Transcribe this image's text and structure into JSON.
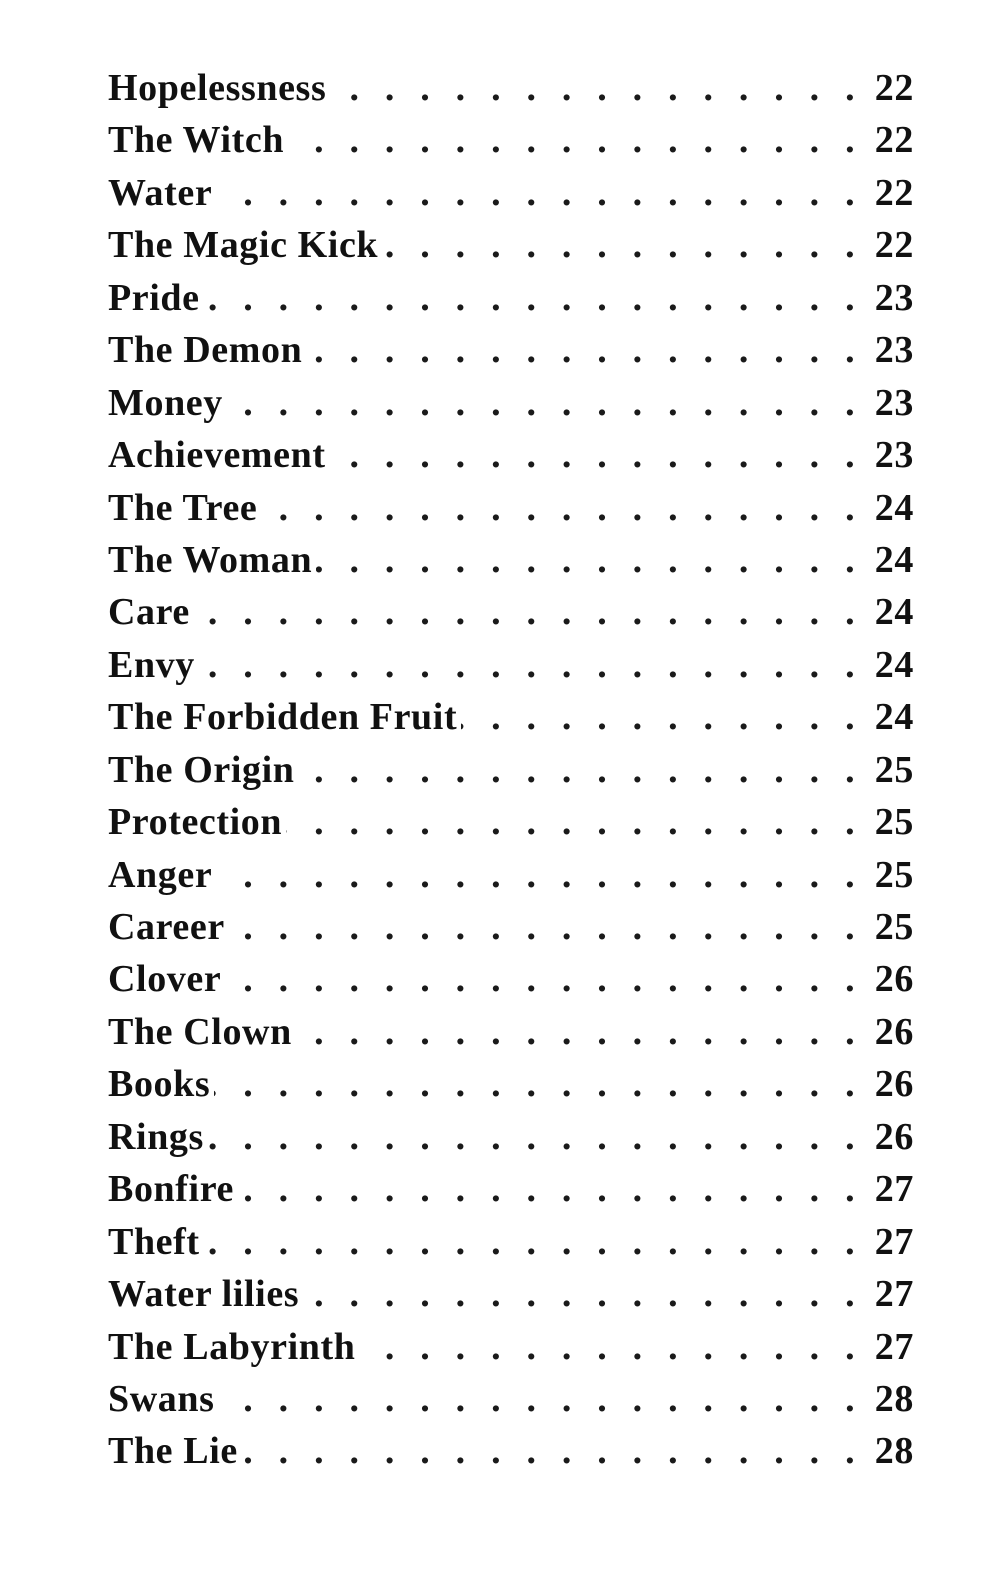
{
  "toc": {
    "entries": [
      {
        "title": "Hopelessness",
        "page": "22"
      },
      {
        "title": "The Witch",
        "page": "22"
      },
      {
        "title": "Water",
        "page": "22"
      },
      {
        "title": "The Magic Kick",
        "page": "22"
      },
      {
        "title": "Pride",
        "page": "23"
      },
      {
        "title": "The Demon",
        "page": "23"
      },
      {
        "title": "Money",
        "page": "23"
      },
      {
        "title": "Achievement",
        "page": "23"
      },
      {
        "title": "The Tree",
        "page": "24"
      },
      {
        "title": "The Woman",
        "page": "24"
      },
      {
        "title": "Care",
        "page": "24"
      },
      {
        "title": "Envy",
        "page": "24"
      },
      {
        "title": "The Forbidden Fruit",
        "page": "24"
      },
      {
        "title": "The Origin",
        "page": "25"
      },
      {
        "title": "Protection",
        "page": "25"
      },
      {
        "title": "Anger",
        "page": "25"
      },
      {
        "title": "Career",
        "page": "25"
      },
      {
        "title": "Clover",
        "page": "26"
      },
      {
        "title": "The Clown",
        "page": "26"
      },
      {
        "title": "Books",
        "page": "26"
      },
      {
        "title": "Rings",
        "page": "26"
      },
      {
        "title": "Bonfire",
        "page": "27"
      },
      {
        "title": "Theft",
        "page": "27"
      },
      {
        "title": "Water lilies",
        "page": "27"
      },
      {
        "title": "The Labyrinth",
        "page": "27"
      },
      {
        "title": "Swans",
        "page": "28"
      },
      {
        "title": "The Lie",
        "page": "28"
      }
    ]
  }
}
